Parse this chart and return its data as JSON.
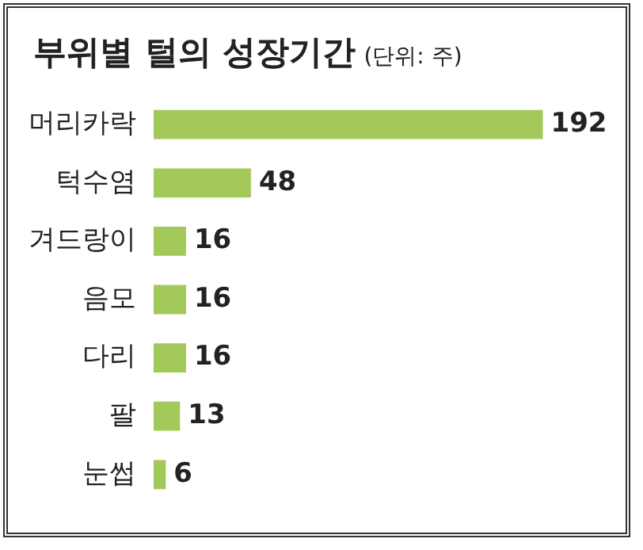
{
  "chart_data": {
    "type": "bar",
    "orientation": "horizontal",
    "title": "부위별 털의 성장기간",
    "subtitle": "(단위: 주)",
    "categories": [
      "머리카락",
      "턱수염",
      "겨드랑이",
      "음모",
      "다리",
      "팔",
      "눈썹"
    ],
    "values": [
      192,
      48,
      16,
      16,
      16,
      13,
      6
    ],
    "color": "#a3c95a",
    "data_labels": true
  }
}
